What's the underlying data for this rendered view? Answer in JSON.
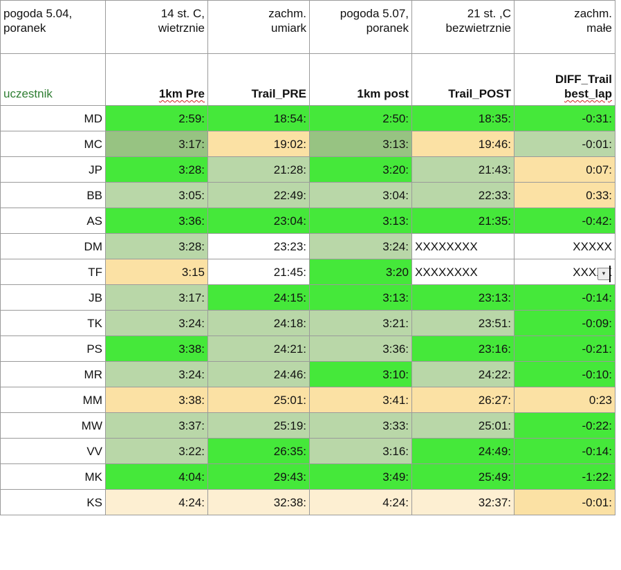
{
  "top_row": [
    [
      "pogoda 5.04,",
      "poranek"
    ],
    [
      "14 st. C,",
      "wietrznie"
    ],
    [
      "zachm.",
      "umiark"
    ],
    [
      "pogoda 5.07,",
      "poranek"
    ],
    [
      "21 st. ,C",
      "bezwietrznie"
    ],
    [
      "zachm.",
      "małe"
    ]
  ],
  "header": {
    "participant": "uczestnik",
    "pre_1km": "1km Pre",
    "trail_pre": "Trail_PRE",
    "post_1km": "1km post",
    "trail_post": "Trail_POST",
    "diff_line1": "DIFF_Trail",
    "diff_line2": "best_lap"
  },
  "colors": {
    "green": "#45e83a",
    "light-green": "#b9d7a8",
    "dark-green": "#97c382",
    "yellow": "#fbe1a4",
    "pale-yellow": "#fdefd2",
    "white": "#ffffff",
    "participant_text": "#2e7d32"
  },
  "rows": [
    {
      "cells": [
        "MD",
        "2:59:",
        "18:54:",
        "2:50:",
        "18:35:",
        "-0:31:"
      ],
      "fills": [
        "w",
        "g",
        "g",
        "g",
        "g",
        "g"
      ]
    },
    {
      "cells": [
        "MC",
        "3:17:",
        "19:02:",
        "3:13:",
        "19:46:",
        "-0:01:"
      ],
      "fills": [
        "w",
        "dg",
        "y",
        "dg",
        "y",
        "lg"
      ]
    },
    {
      "cells": [
        "JP",
        "3:28:",
        "21:28:",
        "3:20:",
        "21:43:",
        "0:07:"
      ],
      "fills": [
        "w",
        "g",
        "lg",
        "g",
        "lg",
        "y"
      ]
    },
    {
      "cells": [
        "BB",
        "3:05:",
        "22:49:",
        "3:04:",
        "22:33:",
        "0:33:"
      ],
      "fills": [
        "w",
        "lg",
        "lg",
        "lg",
        "lg",
        "y"
      ]
    },
    {
      "cells": [
        "AS",
        "3:36:",
        "23:04:",
        "3:13:",
        "21:35:",
        "-0:42:"
      ],
      "fills": [
        "w",
        "g",
        "g",
        "g",
        "g",
        "g"
      ]
    },
    {
      "cells": [
        "DM",
        "3:28:",
        "23:23:",
        "3:24:",
        "XXXXXXXX",
        "XXXXX"
      ],
      "fills": [
        "w",
        "lg",
        "w",
        "lg",
        "w",
        "w"
      ]
    },
    {
      "cells": [
        "TF",
        "3:15",
        "21:45:",
        "3:20",
        "XXXXXXXX",
        "XXXXX"
      ],
      "fills": [
        "w",
        "y",
        "w",
        "g",
        "w",
        "w"
      ]
    },
    {
      "cells": [
        "JB",
        "3:17:",
        "24:15:",
        "3:13:",
        "23:13:",
        "-0:14:"
      ],
      "fills": [
        "w",
        "lg",
        "g",
        "g",
        "g",
        "g"
      ]
    },
    {
      "cells": [
        "TK",
        "3:24:",
        "24:18:",
        "3:21:",
        "23:51:",
        "-0:09:"
      ],
      "fills": [
        "w",
        "lg",
        "lg",
        "lg",
        "lg",
        "g"
      ]
    },
    {
      "cells": [
        "PS",
        "3:38:",
        "24:21:",
        "3:36:",
        "23:16:",
        "-0:21:"
      ],
      "fills": [
        "w",
        "g",
        "lg",
        "lg",
        "g",
        "g"
      ]
    },
    {
      "cells": [
        "MR",
        "3:24:",
        "24:46:",
        "3:10:",
        "24:22:",
        "-0:10:"
      ],
      "fills": [
        "w",
        "lg",
        "lg",
        "g",
        "lg",
        "g"
      ]
    },
    {
      "cells": [
        "MM",
        "3:38:",
        "25:01:",
        "3:41:",
        "26:27:",
        "0:23"
      ],
      "fills": [
        "w",
        "y",
        "y",
        "y",
        "y",
        "y"
      ]
    },
    {
      "cells": [
        "MW",
        "3:37:",
        "25:19:",
        "3:33:",
        "25:01:",
        "-0:22:"
      ],
      "fills": [
        "w",
        "lg",
        "lg",
        "lg",
        "lg",
        "g"
      ]
    },
    {
      "cells": [
        "VV",
        "3:22:",
        "26:35:",
        "3:16:",
        "24:49:",
        "-0:14:"
      ],
      "fills": [
        "w",
        "lg",
        "g",
        "lg",
        "g",
        "g"
      ]
    },
    {
      "cells": [
        "MK",
        "4:04:",
        "29:43:",
        "3:49:",
        "25:49:",
        "-1:22:"
      ],
      "fills": [
        "w",
        "g",
        "g",
        "g",
        "g",
        "g"
      ]
    },
    {
      "cells": [
        "KS",
        "4:24:",
        "32:38:",
        "4:24:",
        "32:37:",
        "-0:01:"
      ],
      "fills": [
        "w",
        "py",
        "py",
        "py",
        "py",
        "y"
      ]
    }
  ],
  "dropdown_glyph": "▾"
}
